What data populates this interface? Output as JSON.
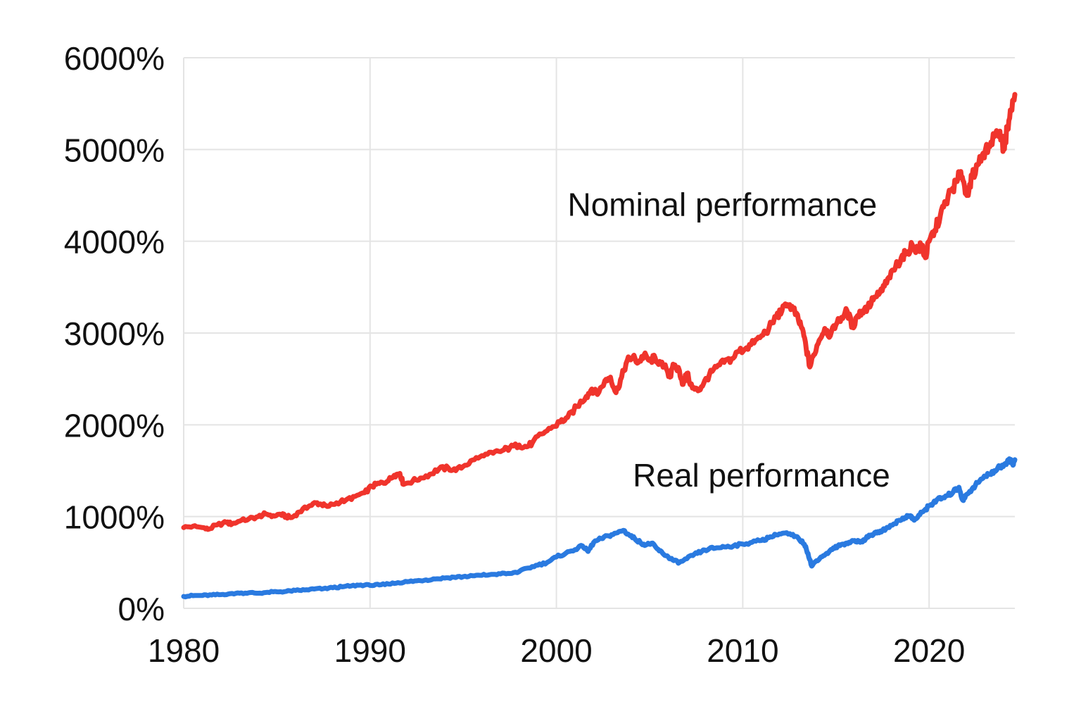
{
  "chart_data": {
    "type": "line",
    "title": "",
    "xlabel": "",
    "ylabel": "",
    "xlim": [
      1980,
      2024.6
    ],
    "ylim": [
      0,
      6000
    ],
    "x_ticks": [
      1980,
      1990,
      2000,
      2010,
      2020
    ],
    "y_ticks": [
      0,
      1000,
      2000,
      3000,
      4000,
      5000,
      6000
    ],
    "x_tick_labels": [
      "1980",
      "1990",
      "2000",
      "2010",
      "2020"
    ],
    "y_tick_labels": [
      "0%",
      "1000%",
      "2000%",
      "3000%",
      "4000%",
      "5000%",
      "6000%"
    ],
    "grid": true,
    "legend": "none",
    "series": [
      {
        "name": "Nominal performance",
        "color": "#f0342c",
        "label_at": [
          2000.6,
          4400
        ],
        "points": [
          [
            1980,
            880
          ],
          [
            1980.5,
            895
          ],
          [
            1981,
            880
          ],
          [
            1981.3,
            860
          ],
          [
            1981.8,
            910
          ],
          [
            1982.3,
            935
          ],
          [
            1982.6,
            920
          ],
          [
            1983,
            950
          ],
          [
            1983.5,
            975
          ],
          [
            1984,
            1000
          ],
          [
            1984.4,
            1030
          ],
          [
            1984.8,
            1010
          ],
          [
            1985.2,
            1025
          ],
          [
            1985.5,
            1000
          ],
          [
            1985.8,
            990
          ],
          [
            1986.2,
            1050
          ],
          [
            1986.7,
            1110
          ],
          [
            1987.1,
            1150
          ],
          [
            1987.4,
            1130
          ],
          [
            1987.7,
            1110
          ],
          [
            1988.2,
            1150
          ],
          [
            1988.7,
            1180
          ],
          [
            1989.2,
            1220
          ],
          [
            1989.7,
            1260
          ],
          [
            1990.1,
            1330
          ],
          [
            1990.5,
            1360
          ],
          [
            1990.9,
            1380
          ],
          [
            1991.3,
            1450
          ],
          [
            1991.6,
            1470
          ],
          [
            1991.8,
            1350
          ],
          [
            1992.3,
            1390
          ],
          [
            1992.7,
            1420
          ],
          [
            1993.2,
            1460
          ],
          [
            1993.7,
            1520
          ],
          [
            1994.2,
            1530
          ],
          [
            1994.6,
            1500
          ],
          [
            1995.1,
            1560
          ],
          [
            1995.6,
            1620
          ],
          [
            1996.1,
            1660
          ],
          [
            1996.6,
            1690
          ],
          [
            1997.1,
            1720
          ],
          [
            1997.5,
            1750
          ],
          [
            1998,
            1780
          ],
          [
            1998.4,
            1760
          ],
          [
            1998.7,
            1800
          ],
          [
            1999.2,
            1900
          ],
          [
            1999.7,
            1960
          ],
          [
            2000.2,
            2030
          ],
          [
            2000.6,
            2080
          ],
          [
            2001.1,
            2200
          ],
          [
            2001.6,
            2310
          ],
          [
            2001.9,
            2390
          ],
          [
            2002.2,
            2330
          ],
          [
            2002.6,
            2480
          ],
          [
            2002.9,
            2520
          ],
          [
            2003.2,
            2350
          ],
          [
            2003.5,
            2520
          ],
          [
            2003.8,
            2700
          ],
          [
            2004.1,
            2740
          ],
          [
            2004.4,
            2680
          ],
          [
            2004.7,
            2760
          ],
          [
            2005,
            2700
          ],
          [
            2005.3,
            2730
          ],
          [
            2005.6,
            2660
          ],
          [
            2005.9,
            2610
          ],
          [
            2006.1,
            2520
          ],
          [
            2006.3,
            2650
          ],
          [
            2006.6,
            2590
          ],
          [
            2006.8,
            2440
          ],
          [
            2007,
            2560
          ],
          [
            2007.3,
            2400
          ],
          [
            2007.6,
            2370
          ],
          [
            2007.9,
            2450
          ],
          [
            2008.2,
            2540
          ],
          [
            2008.6,
            2630
          ],
          [
            2009,
            2680
          ],
          [
            2009.4,
            2720
          ],
          [
            2009.8,
            2800
          ],
          [
            2010.2,
            2840
          ],
          [
            2010.6,
            2890
          ],
          [
            2011,
            2970
          ],
          [
            2011.4,
            3050
          ],
          [
            2011.8,
            3180
          ],
          [
            2012.1,
            3240
          ],
          [
            2012.4,
            3310
          ],
          [
            2012.7,
            3270
          ],
          [
            2013,
            3130
          ],
          [
            2013.2,
            3050
          ],
          [
            2013.4,
            2840
          ],
          [
            2013.6,
            2630
          ],
          [
            2013.8,
            2760
          ],
          [
            2014.1,
            2920
          ],
          [
            2014.4,
            3050
          ],
          [
            2014.7,
            2970
          ],
          [
            2015,
            3090
          ],
          [
            2015.3,
            3170
          ],
          [
            2015.6,
            3240
          ],
          [
            2015.9,
            3060
          ],
          [
            2016.1,
            3170
          ],
          [
            2016.4,
            3240
          ],
          [
            2016.7,
            3280
          ],
          [
            2017,
            3360
          ],
          [
            2017.3,
            3420
          ],
          [
            2017.6,
            3510
          ],
          [
            2017.9,
            3600
          ],
          [
            2018.2,
            3720
          ],
          [
            2018.5,
            3820
          ],
          [
            2018.8,
            3880
          ],
          [
            2019.1,
            3960
          ],
          [
            2019.4,
            3900
          ],
          [
            2019.6,
            3960
          ],
          [
            2019.8,
            3820
          ],
          [
            2020,
            4000
          ],
          [
            2020.3,
            4120
          ],
          [
            2020.6,
            4280
          ],
          [
            2020.9,
            4430
          ],
          [
            2021.2,
            4560
          ],
          [
            2021.5,
            4650
          ],
          [
            2021.7,
            4760
          ],
          [
            2021.9,
            4600
          ],
          [
            2022.1,
            4500
          ],
          [
            2022.3,
            4700
          ],
          [
            2022.6,
            4830
          ],
          [
            2022.9,
            4960
          ],
          [
            2023.2,
            5040
          ],
          [
            2023.5,
            5140
          ],
          [
            2023.8,
            5200
          ],
          [
            2024,
            5000
          ],
          [
            2024.2,
            5230
          ],
          [
            2024.4,
            5420
          ],
          [
            2024.6,
            5600
          ]
        ]
      },
      {
        "name": "Real performance",
        "color": "#2a7ae0",
        "label_at": [
          2004.1,
          1450
        ],
        "points": [
          [
            1980,
            130
          ],
          [
            1980.5,
            138
          ],
          [
            1981,
            140
          ],
          [
            1981.5,
            145
          ],
          [
            1982,
            150
          ],
          [
            1982.5,
            160
          ],
          [
            1983,
            165
          ],
          [
            1983.5,
            170
          ],
          [
            1984,
            165
          ],
          [
            1984.5,
            175
          ],
          [
            1985,
            180
          ],
          [
            1985.5,
            185
          ],
          [
            1986,
            195
          ],
          [
            1986.5,
            200
          ],
          [
            1987,
            210
          ],
          [
            1987.5,
            215
          ],
          [
            1988,
            225
          ],
          [
            1988.5,
            235
          ],
          [
            1989,
            245
          ],
          [
            1989.5,
            255
          ],
          [
            1990,
            250
          ],
          [
            1990.5,
            255
          ],
          [
            1991,
            265
          ],
          [
            1991.5,
            280
          ],
          [
            1992,
            290
          ],
          [
            1992.5,
            300
          ],
          [
            1993,
            310
          ],
          [
            1993.5,
            320
          ],
          [
            1994,
            330
          ],
          [
            1994.5,
            340
          ],
          [
            1995,
            345
          ],
          [
            1995.5,
            355
          ],
          [
            1996,
            360
          ],
          [
            1996.5,
            370
          ],
          [
            1997,
            375
          ],
          [
            1997.5,
            380
          ],
          [
            1998,
            400
          ],
          [
            1998.5,
            440
          ],
          [
            1999,
            470
          ],
          [
            1999.5,
            500
          ],
          [
            2000,
            560
          ],
          [
            2000.5,
            600
          ],
          [
            2001,
            640
          ],
          [
            2001.4,
            680
          ],
          [
            2001.7,
            620
          ],
          [
            2002,
            720
          ],
          [
            2002.4,
            760
          ],
          [
            2002.8,
            790
          ],
          [
            2003.2,
            820
          ],
          [
            2003.6,
            850
          ],
          [
            2003.9,
            800
          ],
          [
            2004.2,
            760
          ],
          [
            2004.5,
            720
          ],
          [
            2004.8,
            690
          ],
          [
            2005.1,
            710
          ],
          [
            2005.4,
            650
          ],
          [
            2005.7,
            600
          ],
          [
            2006,
            560
          ],
          [
            2006.3,
            520
          ],
          [
            2006.6,
            500
          ],
          [
            2007,
            540
          ],
          [
            2007.4,
            590
          ],
          [
            2007.8,
            620
          ],
          [
            2008.2,
            650
          ],
          [
            2008.6,
            660
          ],
          [
            2009,
            670
          ],
          [
            2009.5,
            680
          ],
          [
            2010,
            700
          ],
          [
            2010.5,
            720
          ],
          [
            2011,
            740
          ],
          [
            2011.4,
            770
          ],
          [
            2011.8,
            800
          ],
          [
            2012.2,
            820
          ],
          [
            2012.6,
            800
          ],
          [
            2013,
            760
          ],
          [
            2013.3,
            700
          ],
          [
            2013.5,
            600
          ],
          [
            2013.7,
            460
          ],
          [
            2013.9,
            510
          ],
          [
            2014.2,
            560
          ],
          [
            2014.5,
            600
          ],
          [
            2014.8,
            640
          ],
          [
            2015.1,
            680
          ],
          [
            2015.4,
            700
          ],
          [
            2015.7,
            720
          ],
          [
            2016,
            740
          ],
          [
            2016.3,
            720
          ],
          [
            2016.6,
            760
          ],
          [
            2016.9,
            800
          ],
          [
            2017.2,
            820
          ],
          [
            2017.5,
            850
          ],
          [
            2017.8,
            880
          ],
          [
            2018.1,
            920
          ],
          [
            2018.4,
            960
          ],
          [
            2018.7,
            990
          ],
          [
            2019,
            1010
          ],
          [
            2019.2,
            960
          ],
          [
            2019.5,
            1020
          ],
          [
            2019.8,
            1080
          ],
          [
            2020.1,
            1130
          ],
          [
            2020.4,
            1180
          ],
          [
            2020.7,
            1200
          ],
          [
            2021,
            1230
          ],
          [
            2021.3,
            1270
          ],
          [
            2021.6,
            1320
          ],
          [
            2021.8,
            1180
          ],
          [
            2022,
            1240
          ],
          [
            2022.3,
            1300
          ],
          [
            2022.6,
            1370
          ],
          [
            2022.9,
            1420
          ],
          [
            2023.2,
            1460
          ],
          [
            2023.5,
            1500
          ],
          [
            2023.8,
            1540
          ],
          [
            2024.1,
            1580
          ],
          [
            2024.3,
            1630
          ],
          [
            2024.5,
            1560
          ],
          [
            2024.6,
            1620
          ]
        ]
      }
    ]
  }
}
